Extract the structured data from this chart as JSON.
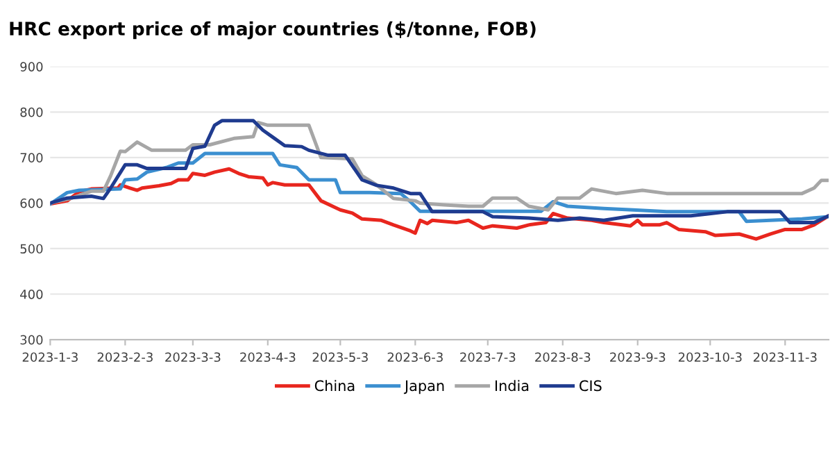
{
  "chart_data": {
    "type": "line",
    "title": "HRC export price of major countries ($/tonne, FOB)",
    "ylim": [
      300,
      900
    ],
    "yticks": [
      300,
      400,
      500,
      600,
      700,
      800,
      900
    ],
    "xlim": [
      "2023-01-03",
      "2023-11-21"
    ],
    "xticks": [
      {
        "value": "2023-01-03",
        "label": "2023-1-3"
      },
      {
        "value": "2023-02-03",
        "label": "2023-2-3"
      },
      {
        "value": "2023-03-03",
        "label": "2023-3-3"
      },
      {
        "value": "2023-04-03",
        "label": "2023-4-3"
      },
      {
        "value": "2023-05-03",
        "label": "2023-5-3"
      },
      {
        "value": "2023-06-03",
        "label": "2023-6-3"
      },
      {
        "value": "2023-07-03",
        "label": "2023-7-3"
      },
      {
        "value": "2023-08-03",
        "label": "2023-8-3"
      },
      {
        "value": "2023-09-03",
        "label": "2023-9-3"
      },
      {
        "value": "2023-10-03",
        "label": "2023-10-3"
      },
      {
        "value": "2023-11-03",
        "label": "2023-11-3"
      }
    ],
    "grid": "y",
    "legend": "bottom",
    "marker": "none",
    "line_style": "solid",
    "series": [
      {
        "name": "China",
        "color": "#e8261e",
        "x": [
          "2023-01-03",
          "2023-01-10",
          "2023-01-15",
          "2023-01-20",
          "2023-01-31",
          "2023-02-01",
          "2023-02-05",
          "2023-02-08",
          "2023-02-10",
          "2023-02-17",
          "2023-02-22",
          "2023-02-25",
          "2023-03-01",
          "2023-03-03",
          "2023-03-08",
          "2023-03-12",
          "2023-03-18",
          "2023-03-22",
          "2023-03-26",
          "2023-04-01",
          "2023-04-03",
          "2023-04-05",
          "2023-04-10",
          "2023-04-20",
          "2023-04-25",
          "2023-05-01",
          "2023-05-03",
          "2023-05-08",
          "2023-05-12",
          "2023-05-20",
          "2023-05-25",
          "2023-06-01",
          "2023-06-03",
          "2023-06-05",
          "2023-06-08",
          "2023-06-10",
          "2023-06-20",
          "2023-06-25",
          "2023-07-01",
          "2023-07-05",
          "2023-07-15",
          "2023-07-20",
          "2023-07-27",
          "2023-07-30",
          "2023-08-05",
          "2023-08-15",
          "2023-08-20",
          "2023-08-31",
          "2023-09-03",
          "2023-09-05",
          "2023-09-12",
          "2023-09-15",
          "2023-09-20",
          "2023-10-01",
          "2023-10-05",
          "2023-10-15",
          "2023-10-22",
          "2023-10-28",
          "2023-11-03",
          "2023-11-10",
          "2023-11-15",
          "2023-11-21"
        ],
        "values": [
          598,
          605,
          625,
          631,
          633,
          640,
          633,
          628,
          633,
          638,
          643,
          651,
          651,
          665,
          661,
          668,
          675,
          665,
          658,
          655,
          640,
          645,
          640,
          640,
          605,
          590,
          585,
          578,
          565,
          562,
          552,
          539,
          534,
          562,
          555,
          562,
          557,
          562,
          545,
          550,
          545,
          552,
          557,
          577,
          567,
          562,
          557,
          550,
          562,
          552,
          552,
          557,
          542,
          537,
          529,
          532,
          521,
          532,
          542,
          542,
          552,
          572
        ]
      },
      {
        "name": "Japan",
        "color": "#3b8fd0",
        "x": [
          "2023-01-03",
          "2023-01-10",
          "2023-01-15",
          "2023-02-01",
          "2023-02-03",
          "2023-02-08",
          "2023-02-12",
          "2023-02-20",
          "2023-02-25",
          "2023-03-03",
          "2023-03-08",
          "2023-04-05",
          "2023-04-08",
          "2023-04-15",
          "2023-04-20",
          "2023-05-01",
          "2023-05-03",
          "2023-05-15",
          "2023-05-28",
          "2023-06-01",
          "2023-06-05",
          "2023-06-10",
          "2023-07-25",
          "2023-07-30",
          "2023-08-05",
          "2023-08-20",
          "2023-09-01",
          "2023-09-15",
          "2023-10-15",
          "2023-10-18",
          "2023-11-10",
          "2023-11-21"
        ],
        "values": [
          598,
          623,
          628,
          631,
          651,
          653,
          668,
          678,
          688,
          688,
          709,
          709,
          684,
          678,
          651,
          651,
          623,
          623,
          621,
          603,
          582,
          582,
          582,
          603,
          593,
          588,
          585,
          581,
          581,
          560,
          565,
          570
        ]
      },
      {
        "name": "India",
        "color": "#a6a6a6",
        "x": [
          "2023-01-03",
          "2023-01-12",
          "2023-01-20",
          "2023-01-25",
          "2023-01-28",
          "2023-02-01",
          "2023-02-03",
          "2023-02-08",
          "2023-02-14",
          "2023-02-28",
          "2023-03-03",
          "2023-03-10",
          "2023-03-20",
          "2023-03-28",
          "2023-03-30",
          "2023-04-03",
          "2023-04-20",
          "2023-04-25",
          "2023-05-08",
          "2023-05-12",
          "2023-05-18",
          "2023-05-25",
          "2023-06-03",
          "2023-06-05",
          "2023-06-15",
          "2023-06-25",
          "2023-07-01",
          "2023-07-05",
          "2023-07-15",
          "2023-07-20",
          "2023-07-28",
          "2023-08-01",
          "2023-08-10",
          "2023-08-15",
          "2023-08-25",
          "2023-09-05",
          "2023-09-15",
          "2023-11-10",
          "2023-11-15",
          "2023-11-18",
          "2023-11-21"
        ],
        "values": [
          600,
          611,
          626,
          626,
          660,
          714,
          713,
          734,
          716,
          716,
          728,
          728,
          742,
          746,
          777,
          771,
          771,
          700,
          697,
          660,
          640,
          610,
          605,
          600,
          596,
          593,
          593,
          611,
          611,
          593,
          585,
          611,
          611,
          631,
          621,
          628,
          621,
          621,
          633,
          650,
          650
        ]
      },
      {
        "name": "CIS",
        "color": "#1f3b8f",
        "x": [
          "2023-01-03",
          "2023-01-10",
          "2023-01-20",
          "2023-01-25",
          "2023-01-28",
          "2023-02-03",
          "2023-02-08",
          "2023-02-12",
          "2023-02-28",
          "2023-03-03",
          "2023-03-08",
          "2023-03-12",
          "2023-03-15",
          "2023-03-28",
          "2023-04-01",
          "2023-04-05",
          "2023-04-10",
          "2023-04-17",
          "2023-04-20",
          "2023-04-28",
          "2023-05-05",
          "2023-05-12",
          "2023-05-18",
          "2023-05-25",
          "2023-06-01",
          "2023-06-05",
          "2023-06-10",
          "2023-07-01",
          "2023-07-05",
          "2023-07-20",
          "2023-08-01",
          "2023-08-10",
          "2023-08-20",
          "2023-09-01",
          "2023-09-25",
          "2023-10-10",
          "2023-11-01",
          "2023-11-05",
          "2023-11-15",
          "2023-11-21"
        ],
        "values": [
          600,
          611,
          615,
          610,
          633,
          684,
          684,
          676,
          676,
          720,
          725,
          771,
          781,
          781,
          760,
          745,
          726,
          724,
          716,
          705,
          705,
          651,
          639,
          633,
          621,
          621,
          581,
          581,
          570,
          567,
          562,
          567,
          562,
          572,
          572,
          581,
          581,
          557,
          557,
          572
        ]
      }
    ]
  }
}
